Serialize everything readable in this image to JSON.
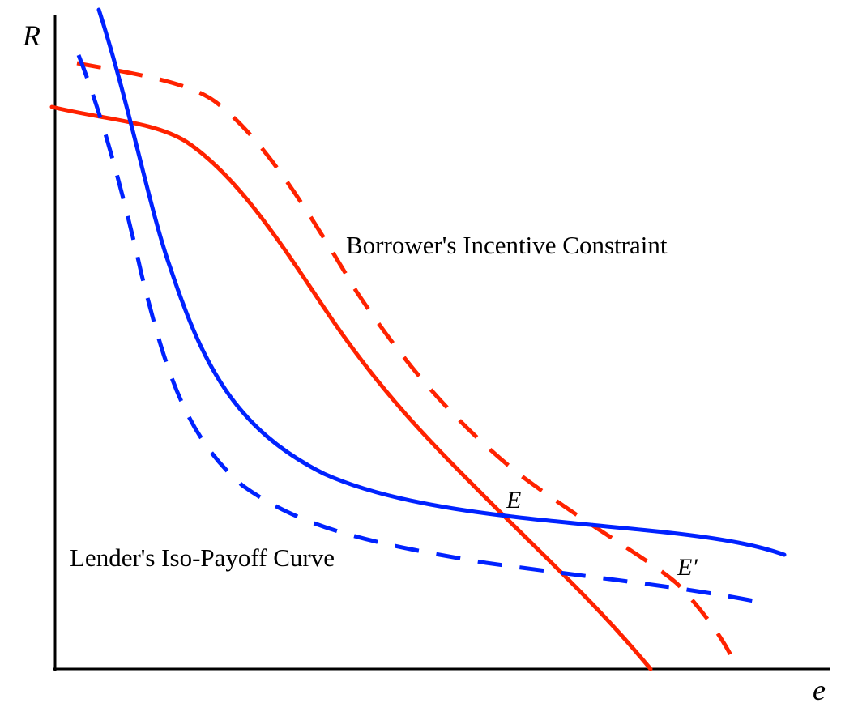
{
  "diagram": {
    "axes": {
      "y_label": "R",
      "x_label": "e"
    },
    "labels": {
      "borrower_curve": "Borrower's Incentive Constraint",
      "lender_curve": "Lender's Iso-Payoff Curve",
      "equilibrium": "E",
      "new_equilibrium": "E′"
    },
    "colors": {
      "borrower": "#ff2200",
      "lender": "#0022ff",
      "axes": "#000000"
    },
    "line_styles": {
      "original_curves": "solid",
      "shifted_curves": "dashed"
    }
  }
}
